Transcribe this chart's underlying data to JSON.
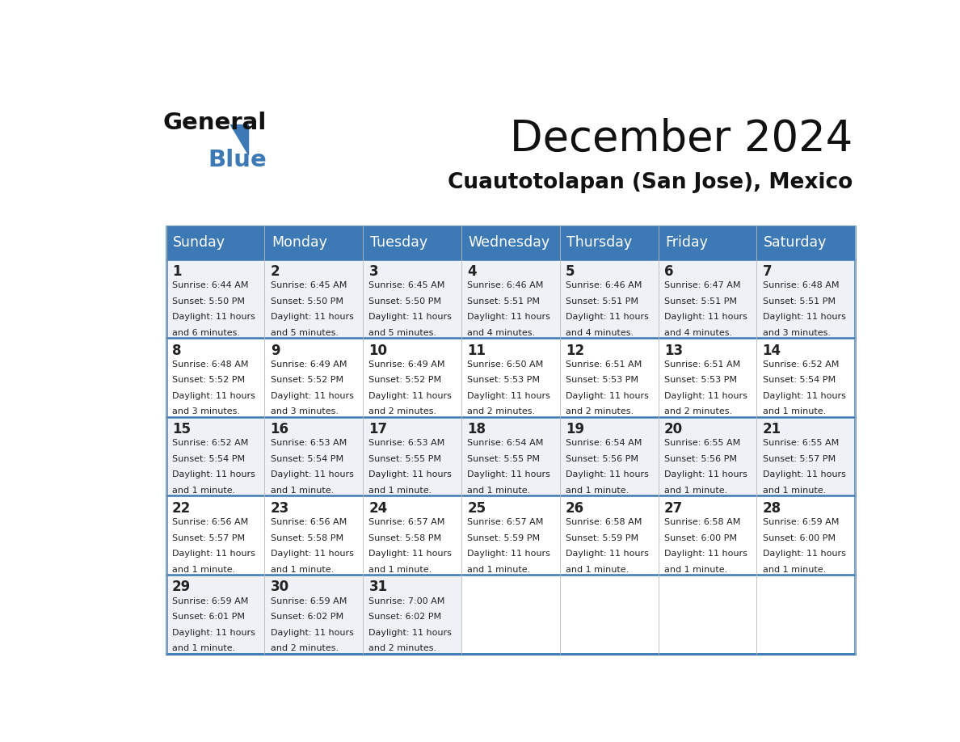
{
  "title": "December 2024",
  "subtitle": "Cuautotolapan (San Jose), Mexico",
  "header_color": "#3d7ab5",
  "header_text_color": "#ffffff",
  "days_of_week": [
    "Sunday",
    "Monday",
    "Tuesday",
    "Wednesday",
    "Thursday",
    "Friday",
    "Saturday"
  ],
  "background_color": "#ffffff",
  "cell_bg_odd": "#eef2f7",
  "cell_bg_even": "#ffffff",
  "row_line_color": "#3d7ab5",
  "text_color": "#222222",
  "logo_blue_color": "#3d7ab5",
  "calendar_data": [
    {
      "day": 1,
      "col": 0,
      "row": 0,
      "sunrise": "6:44 AM",
      "sunset": "5:50 PM",
      "daylight": "11 hours and 6 minutes."
    },
    {
      "day": 2,
      "col": 1,
      "row": 0,
      "sunrise": "6:45 AM",
      "sunset": "5:50 PM",
      "daylight": "11 hours and 5 minutes."
    },
    {
      "day": 3,
      "col": 2,
      "row": 0,
      "sunrise": "6:45 AM",
      "sunset": "5:50 PM",
      "daylight": "11 hours and 5 minutes."
    },
    {
      "day": 4,
      "col": 3,
      "row": 0,
      "sunrise": "6:46 AM",
      "sunset": "5:51 PM",
      "daylight": "11 hours and 4 minutes."
    },
    {
      "day": 5,
      "col": 4,
      "row": 0,
      "sunrise": "6:46 AM",
      "sunset": "5:51 PM",
      "daylight": "11 hours and 4 minutes."
    },
    {
      "day": 6,
      "col": 5,
      "row": 0,
      "sunrise": "6:47 AM",
      "sunset": "5:51 PM",
      "daylight": "11 hours and 4 minutes."
    },
    {
      "day": 7,
      "col": 6,
      "row": 0,
      "sunrise": "6:48 AM",
      "sunset": "5:51 PM",
      "daylight": "11 hours and 3 minutes."
    },
    {
      "day": 8,
      "col": 0,
      "row": 1,
      "sunrise": "6:48 AM",
      "sunset": "5:52 PM",
      "daylight": "11 hours and 3 minutes."
    },
    {
      "day": 9,
      "col": 1,
      "row": 1,
      "sunrise": "6:49 AM",
      "sunset": "5:52 PM",
      "daylight": "11 hours and 3 minutes."
    },
    {
      "day": 10,
      "col": 2,
      "row": 1,
      "sunrise": "6:49 AM",
      "sunset": "5:52 PM",
      "daylight": "11 hours and 2 minutes."
    },
    {
      "day": 11,
      "col": 3,
      "row": 1,
      "sunrise": "6:50 AM",
      "sunset": "5:53 PM",
      "daylight": "11 hours and 2 minutes."
    },
    {
      "day": 12,
      "col": 4,
      "row": 1,
      "sunrise": "6:51 AM",
      "sunset": "5:53 PM",
      "daylight": "11 hours and 2 minutes."
    },
    {
      "day": 13,
      "col": 5,
      "row": 1,
      "sunrise": "6:51 AM",
      "sunset": "5:53 PM",
      "daylight": "11 hours and 2 minutes."
    },
    {
      "day": 14,
      "col": 6,
      "row": 1,
      "sunrise": "6:52 AM",
      "sunset": "5:54 PM",
      "daylight": "11 hours and 1 minute."
    },
    {
      "day": 15,
      "col": 0,
      "row": 2,
      "sunrise": "6:52 AM",
      "sunset": "5:54 PM",
      "daylight": "11 hours and 1 minute."
    },
    {
      "day": 16,
      "col": 1,
      "row": 2,
      "sunrise": "6:53 AM",
      "sunset": "5:54 PM",
      "daylight": "11 hours and 1 minute."
    },
    {
      "day": 17,
      "col": 2,
      "row": 2,
      "sunrise": "6:53 AM",
      "sunset": "5:55 PM",
      "daylight": "11 hours and 1 minute."
    },
    {
      "day": 18,
      "col": 3,
      "row": 2,
      "sunrise": "6:54 AM",
      "sunset": "5:55 PM",
      "daylight": "11 hours and 1 minute."
    },
    {
      "day": 19,
      "col": 4,
      "row": 2,
      "sunrise": "6:54 AM",
      "sunset": "5:56 PM",
      "daylight": "11 hours and 1 minute."
    },
    {
      "day": 20,
      "col": 5,
      "row": 2,
      "sunrise": "6:55 AM",
      "sunset": "5:56 PM",
      "daylight": "11 hours and 1 minute."
    },
    {
      "day": 21,
      "col": 6,
      "row": 2,
      "sunrise": "6:55 AM",
      "sunset": "5:57 PM",
      "daylight": "11 hours and 1 minute."
    },
    {
      "day": 22,
      "col": 0,
      "row": 3,
      "sunrise": "6:56 AM",
      "sunset": "5:57 PM",
      "daylight": "11 hours and 1 minute."
    },
    {
      "day": 23,
      "col": 1,
      "row": 3,
      "sunrise": "6:56 AM",
      "sunset": "5:58 PM",
      "daylight": "11 hours and 1 minute."
    },
    {
      "day": 24,
      "col": 2,
      "row": 3,
      "sunrise": "6:57 AM",
      "sunset": "5:58 PM",
      "daylight": "11 hours and 1 minute."
    },
    {
      "day": 25,
      "col": 3,
      "row": 3,
      "sunrise": "6:57 AM",
      "sunset": "5:59 PM",
      "daylight": "11 hours and 1 minute."
    },
    {
      "day": 26,
      "col": 4,
      "row": 3,
      "sunrise": "6:58 AM",
      "sunset": "5:59 PM",
      "daylight": "11 hours and 1 minute."
    },
    {
      "day": 27,
      "col": 5,
      "row": 3,
      "sunrise": "6:58 AM",
      "sunset": "6:00 PM",
      "daylight": "11 hours and 1 minute."
    },
    {
      "day": 28,
      "col": 6,
      "row": 3,
      "sunrise": "6:59 AM",
      "sunset": "6:00 PM",
      "daylight": "11 hours and 1 minute."
    },
    {
      "day": 29,
      "col": 0,
      "row": 4,
      "sunrise": "6:59 AM",
      "sunset": "6:01 PM",
      "daylight": "11 hours and 1 minute."
    },
    {
      "day": 30,
      "col": 1,
      "row": 4,
      "sunrise": "6:59 AM",
      "sunset": "6:02 PM",
      "daylight": "11 hours and 2 minutes."
    },
    {
      "day": 31,
      "col": 2,
      "row": 4,
      "sunrise": "7:00 AM",
      "sunset": "6:02 PM",
      "daylight": "11 hours and 2 minutes."
    }
  ]
}
